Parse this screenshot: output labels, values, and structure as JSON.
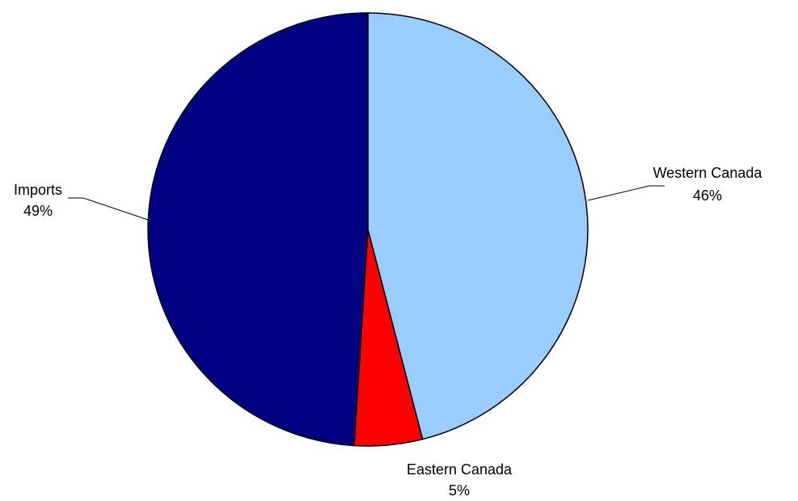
{
  "chart_data": {
    "type": "pie",
    "title": "",
    "slices": [
      {
        "label": "Western Canada",
        "value": 46,
        "value_label": "46%",
        "color": "#99CCFF"
      },
      {
        "label": "Eastern Canada",
        "value": 5,
        "value_label": "5%",
        "color": "#FF0000"
      },
      {
        "label": "Imports",
        "value": 49,
        "value_label": "49%",
        "color": "#000080"
      }
    ],
    "start": "12 o'clock",
    "direction": "clockwise",
    "legend": "none",
    "label_style": "outside with leader lines"
  }
}
